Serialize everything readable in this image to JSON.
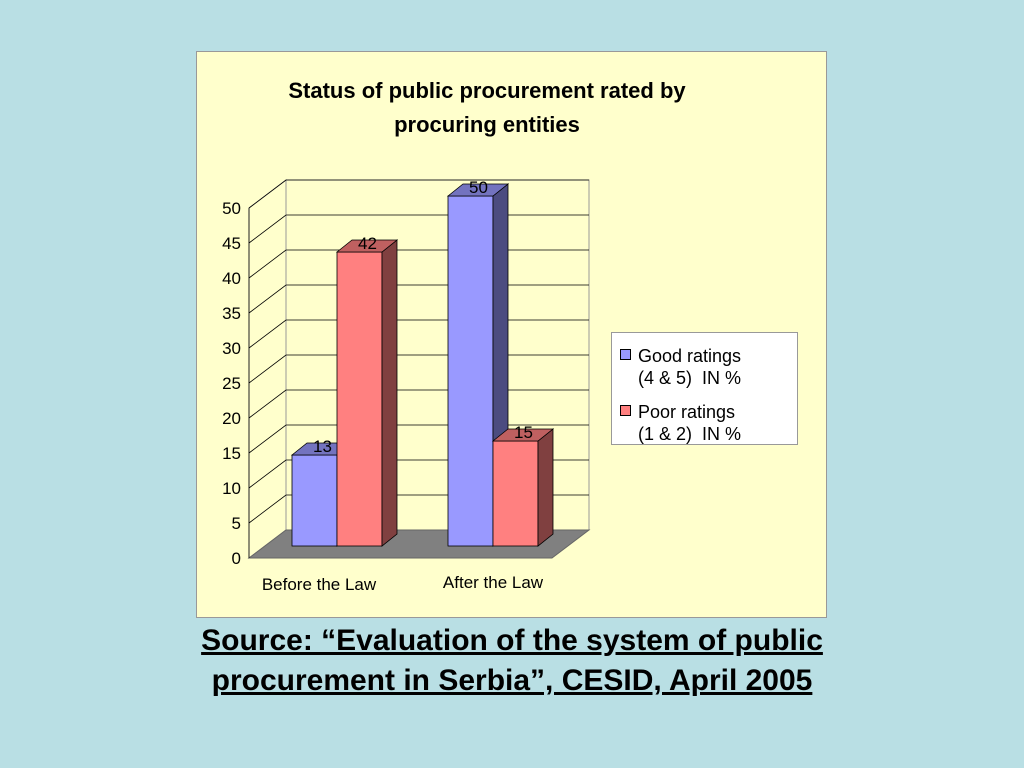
{
  "chart_data": {
    "type": "bar",
    "title": "Status of public procurement rated by procuring entities",
    "categories": [
      "Before the Law",
      "After the Law"
    ],
    "series": [
      {
        "name": "Good ratings (4 & 5)  IN %",
        "legend_lines": [
          "Good ratings",
          "(4 & 5)  IN %"
        ],
        "values": [
          13,
          50
        ],
        "color": "#9999ff",
        "side_color": "#4c4c80",
        "top_color": "#7373bf"
      },
      {
        "name": "Poor ratings (1 & 2)  IN %",
        "legend_lines": [
          "Poor ratings",
          "(1 & 2)  IN %"
        ],
        "values": [
          42,
          15
        ],
        "color": "#ff8080",
        "side_color": "#804040",
        "top_color": "#bf6060"
      }
    ],
    "ylim": [
      0,
      50
    ],
    "yticks": [
      0,
      5,
      10,
      15,
      20,
      25,
      30,
      35,
      40,
      45,
      50
    ],
    "grid": true,
    "legend_position": "right",
    "data_labels": true,
    "three_d": true
  },
  "source": {
    "line1": "Source: “Evaluation of the system of public",
    "line2": "procurement in Serbia”, CESID, April 2005"
  },
  "colors": {
    "background": "#b9dfe4",
    "chart_area": "#ffffcc",
    "floor": "#808080",
    "gridline": "#000000"
  }
}
